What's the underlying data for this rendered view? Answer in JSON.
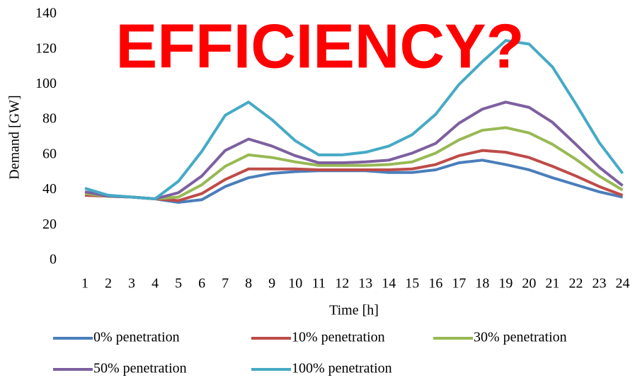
{
  "chart_data": {
    "type": "line",
    "title": "EFFICIENCY?",
    "x_label": "Time [h]",
    "y_label": "Demand [GW]",
    "categories": [
      "1",
      "2",
      "3",
      "4",
      "5",
      "6",
      "7",
      "8",
      "9",
      "10",
      "11",
      "12",
      "13",
      "14",
      "15",
      "16",
      "17",
      "18",
      "19",
      "20",
      "21",
      "22",
      "23",
      "24"
    ],
    "series": [
      {
        "name": "0% penetration",
        "color": "#4a7ebb",
        "values": [
          38,
          37,
          36,
          35,
          33,
          34.5,
          42,
          47,
          49.5,
          50.5,
          51,
          51,
          51,
          50,
          50,
          51.5,
          55.5,
          57,
          54.5,
          51.5,
          47,
          43,
          39,
          36
        ]
      },
      {
        "name": "10% penetration",
        "color": "#be4b48",
        "values": [
          37,
          36.5,
          36,
          35,
          34,
          38,
          46,
          52,
          52,
          52,
          51.5,
          51.5,
          51.5,
          51.5,
          52,
          54.5,
          59.5,
          62.5,
          61.5,
          58.5,
          53.5,
          48,
          42,
          37
        ]
      },
      {
        "name": "30% penetration",
        "color": "#98b954",
        "values": [
          38,
          36.5,
          36,
          35,
          36,
          43,
          53.5,
          60,
          58.5,
          56,
          54,
          54,
          54,
          54.5,
          56,
          61,
          68.5,
          74,
          75.5,
          72.5,
          66,
          57.5,
          48,
          40
        ]
      },
      {
        "name": "50% penetration",
        "color": "#7d60a0",
        "values": [
          39,
          36.5,
          36,
          35,
          38.5,
          48,
          62.5,
          69,
          65,
          59.5,
          55.5,
          55.5,
          56,
          57,
          61,
          66.5,
          78,
          86,
          90,
          87,
          78.5,
          66,
          53,
          42.5
        ]
      },
      {
        "name": "100% penetration",
        "color": "#46aac5",
        "values": [
          41,
          37,
          36,
          35,
          45,
          62,
          82.5,
          90,
          80,
          68,
          60,
          60,
          61.5,
          65,
          71.5,
          83,
          100,
          113,
          125,
          123,
          110,
          89,
          67,
          49.5
        ]
      }
    ],
    "ylim": [
      0,
      140
    ],
    "yticks": [
      0,
      20,
      40,
      60,
      80,
      100,
      120,
      140
    ],
    "grid": false,
    "legend": "bottom"
  }
}
